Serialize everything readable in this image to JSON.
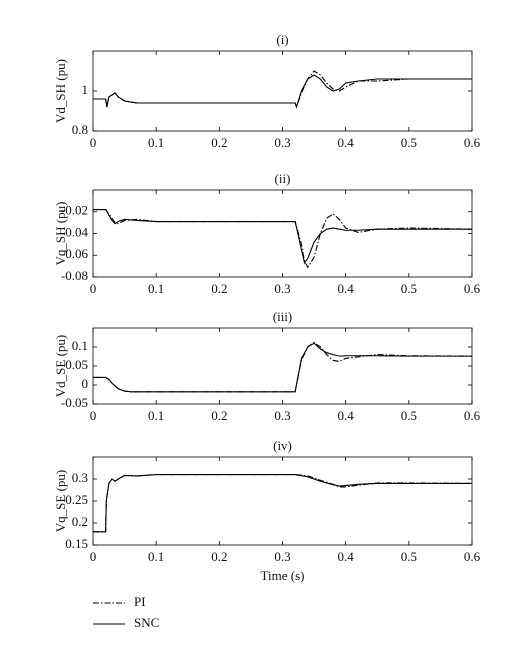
{
  "chart_data": [
    {
      "type": "line",
      "title": "(i)",
      "ylabel": "Vd_SH (pu)",
      "x": [
        0,
        0.015,
        0.02,
        0.022,
        0.025,
        0.03,
        0.035,
        0.04,
        0.05,
        0.07,
        0.1,
        0.2,
        0.3,
        0.32,
        0.322,
        0.33,
        0.34,
        0.35,
        0.36,
        0.37,
        0.38,
        0.39,
        0.4,
        0.42,
        0.45,
        0.5,
        0.6
      ],
      "series": [
        {
          "name": "PI",
          "color": "#000000",
          "linestyle": "dashdot",
          "values": [
            0.96,
            0.96,
            0.96,
            0.92,
            0.97,
            0.98,
            0.99,
            0.97,
            0.95,
            0.94,
            0.94,
            0.94,
            0.94,
            0.94,
            0.92,
            0.99,
            1.06,
            1.1,
            1.08,
            1.04,
            1.01,
            1.0,
            1.02,
            1.05,
            1.05,
            1.06,
            1.06
          ]
        },
        {
          "name": "SNC",
          "color": "#000000",
          "linestyle": "solid",
          "values": [
            0.96,
            0.96,
            0.96,
            0.92,
            0.97,
            0.98,
            0.99,
            0.97,
            0.95,
            0.94,
            0.94,
            0.94,
            0.94,
            0.94,
            0.92,
            1.0,
            1.06,
            1.08,
            1.06,
            1.02,
            1.0,
            1.01,
            1.04,
            1.05,
            1.06,
            1.06,
            1.06
          ]
        }
      ],
      "xlim": [
        0,
        0.6
      ],
      "xticks": [
        0,
        0.1,
        0.2,
        0.3,
        0.4,
        0.5,
        0.6
      ],
      "ylim": [
        0.8,
        1.2
      ],
      "yticks": [
        0.8,
        1
      ]
    },
    {
      "type": "line",
      "title": "(ii)",
      "ylabel": "Vq_SH (pu)",
      "x": [
        0,
        0.015,
        0.02,
        0.03,
        0.035,
        0.04,
        0.05,
        0.07,
        0.1,
        0.2,
        0.3,
        0.32,
        0.33,
        0.335,
        0.34,
        0.35,
        0.36,
        0.37,
        0.38,
        0.39,
        0.4,
        0.42,
        0.45,
        0.5,
        0.6
      ],
      "series": [
        {
          "name": "PI",
          "color": "#000000",
          "linestyle": "dashdot",
          "values": [
            -0.018,
            -0.018,
            -0.018,
            -0.026,
            -0.03,
            -0.031,
            -0.028,
            -0.027,
            -0.029,
            -0.029,
            -0.029,
            -0.029,
            -0.05,
            -0.066,
            -0.071,
            -0.062,
            -0.04,
            -0.026,
            -0.022,
            -0.027,
            -0.035,
            -0.039,
            -0.036,
            -0.035,
            -0.036
          ]
        },
        {
          "name": "SNC",
          "color": "#000000",
          "linestyle": "solid",
          "values": [
            -0.018,
            -0.018,
            -0.018,
            -0.028,
            -0.031,
            -0.029,
            -0.027,
            -0.028,
            -0.029,
            -0.029,
            -0.029,
            -0.029,
            -0.055,
            -0.067,
            -0.063,
            -0.048,
            -0.04,
            -0.036,
            -0.035,
            -0.036,
            -0.037,
            -0.037,
            -0.036,
            -0.036,
            -0.036
          ]
        }
      ],
      "xlim": [
        0,
        0.6
      ],
      "xticks": [
        0,
        0.1,
        0.2,
        0.3,
        0.4,
        0.5,
        0.6
      ],
      "ylim": [
        -0.08,
        0
      ],
      "yticks": [
        -0.08,
        -0.06,
        -0.04,
        -0.02
      ]
    },
    {
      "type": "line",
      "title": "(iii)",
      "ylabel": "Vd_SE (pu)",
      "x": [
        0,
        0.02,
        0.025,
        0.03,
        0.04,
        0.05,
        0.06,
        0.08,
        0.1,
        0.2,
        0.32,
        0.322,
        0.33,
        0.34,
        0.35,
        0.36,
        0.37,
        0.38,
        0.39,
        0.4,
        0.45,
        0.5,
        0.6
      ],
      "series": [
        {
          "name": "PI",
          "color": "#000000",
          "linestyle": "dashdot",
          "values": [
            0.02,
            0.02,
            0.015,
            0.005,
            -0.01,
            -0.016,
            -0.018,
            -0.018,
            -0.018,
            -0.018,
            -0.018,
            0.0,
            0.065,
            0.1,
            0.112,
            0.1,
            0.08,
            0.065,
            0.062,
            0.07,
            0.08,
            0.077,
            0.076
          ]
        },
        {
          "name": "SNC",
          "color": "#000000",
          "linestyle": "solid",
          "values": [
            0.02,
            0.02,
            0.015,
            0.005,
            -0.01,
            -0.016,
            -0.018,
            -0.018,
            -0.018,
            -0.018,
            -0.018,
            0.0,
            0.07,
            0.1,
            0.11,
            0.095,
            0.085,
            0.08,
            0.076,
            0.077,
            0.077,
            0.076,
            0.076
          ]
        }
      ],
      "xlim": [
        0,
        0.6
      ],
      "xticks": [
        0,
        0.1,
        0.2,
        0.3,
        0.4,
        0.5,
        0.6
      ],
      "ylim": [
        -0.05,
        0.15
      ],
      "yticks": [
        -0.05,
        0,
        0.05,
        0.1
      ]
    },
    {
      "type": "line",
      "title": "(iv)",
      "ylabel": "Vq_SE (pu)",
      "xlabel": "Time (s)",
      "x": [
        0,
        0.02,
        0.021,
        0.025,
        0.03,
        0.035,
        0.04,
        0.05,
        0.07,
        0.1,
        0.2,
        0.32,
        0.34,
        0.36,
        0.38,
        0.39,
        0.4,
        0.42,
        0.45,
        0.5,
        0.6
      ],
      "series": [
        {
          "name": "PI",
          "color": "#000000",
          "linestyle": "dashdot",
          "values": [
            0.18,
            0.18,
            0.25,
            0.29,
            0.3,
            0.295,
            0.3,
            0.308,
            0.307,
            0.31,
            0.31,
            0.31,
            0.307,
            0.297,
            0.288,
            0.282,
            0.282,
            0.286,
            0.291,
            0.291,
            0.29
          ]
        },
        {
          "name": "SNC",
          "color": "#000000",
          "linestyle": "solid",
          "values": [
            0.18,
            0.18,
            0.25,
            0.29,
            0.3,
            0.295,
            0.3,
            0.308,
            0.307,
            0.31,
            0.31,
            0.31,
            0.305,
            0.295,
            0.287,
            0.284,
            0.285,
            0.288,
            0.29,
            0.29,
            0.29
          ]
        }
      ],
      "xlim": [
        0,
        0.6
      ],
      "xticks": [
        0,
        0.1,
        0.2,
        0.3,
        0.4,
        0.5,
        0.6
      ],
      "ylim": [
        0.15,
        0.35
      ],
      "yticks": [
        0.15,
        0.2,
        0.25,
        0.3
      ]
    }
  ]
}
